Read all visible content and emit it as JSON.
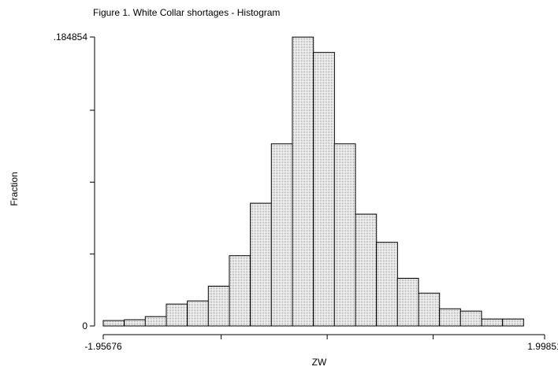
{
  "chart_data": {
    "type": "bar",
    "title": "Figure 1. White Collar shortages - Histogram",
    "xlabel": "ZW",
    "ylabel": "Fraction",
    "xlim": [
      -1.95676,
      1.99851
    ],
    "ylim": [
      0,
      0.184854
    ],
    "x_tick_labels": [
      "-1.95676",
      "1.99851"
    ],
    "x_minor_ticks": [
      -0.9,
      0.05,
      1.0
    ],
    "y_tick_labels": [
      "0",
      ".184854"
    ],
    "y_minor_ticks": [
      0.046,
      0.092,
      0.138
    ],
    "bin_edges": [
      -1.95676,
      -1.76841,
      -1.58006,
      -1.39171,
      -1.20336,
      -1.01501,
      -0.82666,
      -0.63831,
      -0.44996,
      -0.26161,
      -0.07326,
      0.11509,
      0.30344,
      0.49179,
      0.68014,
      0.86849,
      1.05684,
      1.24519,
      1.43354,
      1.62189,
      1.81024,
      1.99851
    ],
    "values": [
      0.0035,
      0.004,
      0.006,
      0.014,
      0.016,
      0.0255,
      0.045,
      0.0785,
      0.1165,
      0.1848,
      0.175,
      0.1165,
      0.0715,
      0.0535,
      0.0305,
      0.021,
      0.011,
      0.0095,
      0.0045,
      0.0045,
      0.0
    ],
    "bar_fill": "#e4e4e4",
    "grid": false,
    "legend": "none"
  }
}
